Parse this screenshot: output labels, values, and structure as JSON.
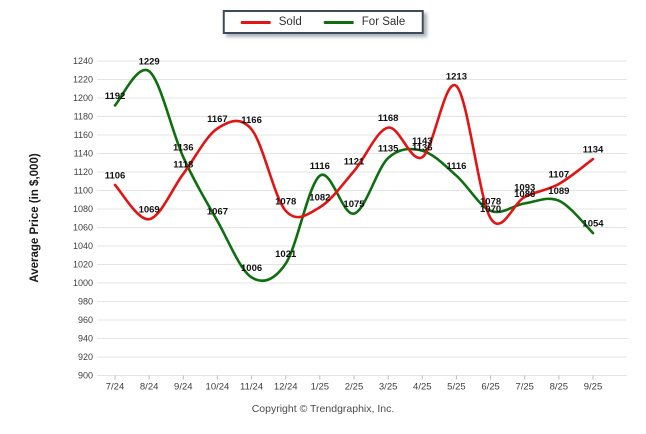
{
  "chart_data": {
    "type": "line",
    "title": "",
    "xlabel": "",
    "ylabel": "Average Price (in $,000)",
    "categories": [
      "7/24",
      "8/24",
      "9/24",
      "10/24",
      "11/24",
      "12/24",
      "1/25",
      "2/25",
      "3/25",
      "4/25",
      "5/25",
      "6/25",
      "7/25",
      "8/25",
      "9/25"
    ],
    "series": [
      {
        "name": "Sold",
        "color": "#e21414",
        "values": [
          1106,
          1069,
          1118,
          1167,
          1166,
          1078,
          1082,
          1121,
          1168,
          1136,
          1213,
          1070,
          1093,
          1107,
          1134
        ]
      },
      {
        "name": "For Sale",
        "color": "#0f6e0f",
        "values": [
          1192,
          1229,
          1136,
          1067,
          1006,
          1021,
          1116,
          1075,
          1135,
          1143,
          1116,
          1078,
          1086,
          1089,
          1054
        ]
      }
    ],
    "ylim": [
      900,
      1240
    ],
    "ytick_step": 20,
    "grid": true,
    "legend_position": "top-center",
    "point_labels": true
  },
  "footer": {
    "copyright": "Copyright © Trendgraphix, Inc."
  },
  "colors": {
    "grid": "#e4e4e4",
    "tick": "#bbbbbb",
    "axis_text": "#3f3f3f",
    "label_text": "#111111",
    "legend_border": "#3e4a58"
  }
}
